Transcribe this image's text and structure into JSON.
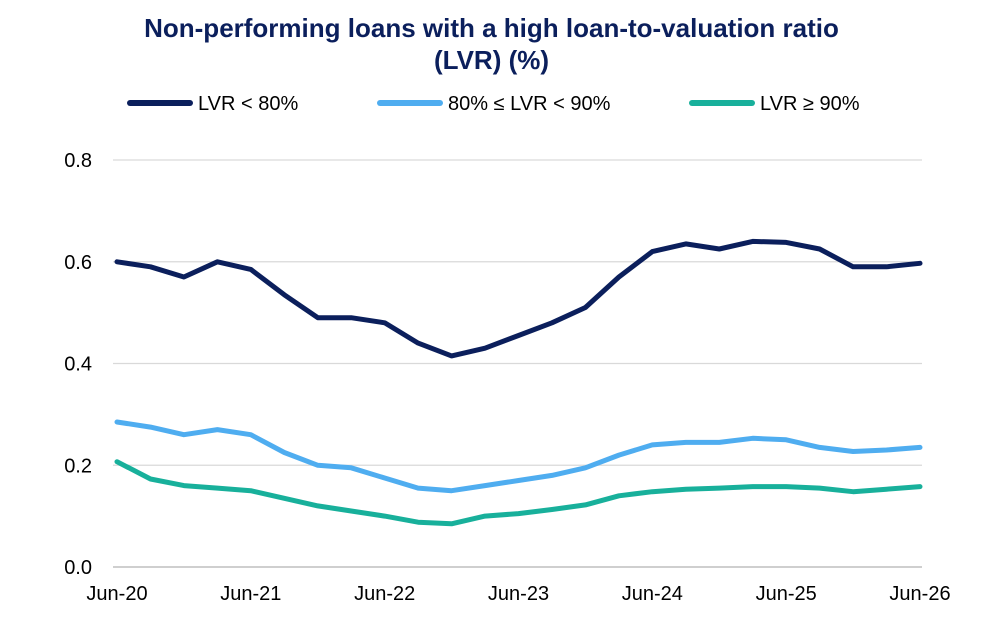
{
  "chart_data": {
    "type": "line",
    "title_lines": [
      "Non-performing loans with a high loan-to-valuation ratio",
      "(LVR) (%)"
    ],
    "x_tick_labels": [
      "Jun-20",
      "Jun-21",
      "Jun-22",
      "Jun-23",
      "Jun-24",
      "Jun-25",
      "Jun-26"
    ],
    "x": [
      "Jun-20",
      "Sep-20",
      "Dec-20",
      "Mar-21",
      "Jun-21",
      "Sep-21",
      "Dec-21",
      "Mar-22",
      "Jun-22",
      "Sep-22",
      "Dec-22",
      "Mar-23",
      "Jun-23",
      "Sep-23",
      "Dec-23",
      "Mar-24",
      "Jun-24",
      "Sep-24",
      "Dec-24",
      "Mar-25",
      "Jun-25",
      "Sep-25",
      "Dec-25",
      "Mar-26",
      "Jun-26"
    ],
    "ylim": [
      0,
      0.8
    ],
    "y_ticks": [
      "0.0",
      "0.2",
      "0.4",
      "0.6",
      "0.8"
    ],
    "grid": true,
    "legend_position": "top",
    "series": [
      {
        "name": "LVR < 80%",
        "color": "#0b1f5c",
        "values": [
          0.6,
          0.59,
          0.57,
          0.6,
          0.585,
          0.535,
          0.49,
          0.49,
          0.48,
          0.44,
          0.415,
          0.43,
          0.455,
          0.48,
          0.51,
          0.57,
          0.62,
          0.635,
          0.625,
          0.64,
          0.638,
          0.625,
          0.59,
          0.59,
          0.597
        ]
      },
      {
        "name": "80% ≤ LVR < 90%",
        "color": "#4fadf0",
        "values": [
          0.285,
          0.275,
          0.26,
          0.27,
          0.26,
          0.225,
          0.2,
          0.195,
          0.175,
          0.155,
          0.15,
          0.16,
          0.17,
          0.18,
          0.195,
          0.22,
          0.24,
          0.245,
          0.245,
          0.253,
          0.25,
          0.235,
          0.227,
          0.23,
          0.235
        ]
      },
      {
        "name": "LVR ≥ 90%",
        "color": "#18b09b",
        "values": [
          0.207,
          0.173,
          0.16,
          0.155,
          0.15,
          0.135,
          0.12,
          0.11,
          0.1,
          0.088,
          0.085,
          0.1,
          0.105,
          0.113,
          0.122,
          0.14,
          0.148,
          0.153,
          0.155,
          0.158,
          0.158,
          0.155,
          0.148,
          0.153,
          0.158
        ]
      }
    ]
  }
}
